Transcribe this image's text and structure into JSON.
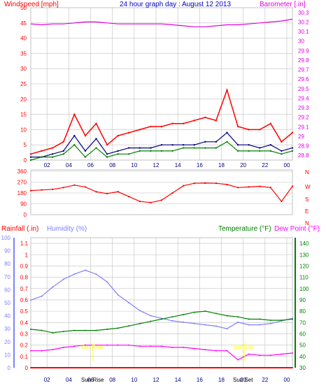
{
  "header": {
    "title": "24 hour graph day : August 12 2013",
    "windspeed_label": "Windspeed [mph]",
    "barometer_label": "Barometer [.in]"
  },
  "bottom": {
    "rainfall_label": "Rainfall (.in)",
    "humidity_label": "Humidity (%)",
    "temperature_label": "Temperature (°F)",
    "dewpoint_label": "Dew Point (°F)",
    "sunrise_label": "Sun Rise",
    "sunset_label": "Sun Set",
    "sunrise_marker": "Sun Rise",
    "sunset_marker": "Sun Set"
  },
  "colors": {
    "wind": "#ff0000",
    "gust_avg": "#000080",
    "wind_green": "#008000",
    "barometer": "#e000e0",
    "direction": "#ff0000",
    "humidity": "#8080ff",
    "temperature": "#008000",
    "dewpoint": "#ff00ff",
    "rain": "#ff0000",
    "sun": "#ffff00",
    "grid": "#c0c0c0"
  },
  "chart_data": [
    {
      "type": "line",
      "x_tick_labels": [
        "02",
        "04",
        "06",
        "08",
        "10",
        "12",
        "14",
        "16",
        "18",
        "20",
        "22",
        "00"
      ],
      "y_left_ticks": [
        "0",
        "5",
        "10",
        "15",
        "20",
        "25",
        "30",
        "35",
        "40",
        "45",
        "50"
      ],
      "y_right_ticks": [
        "28.8",
        "28.9",
        "29",
        "29.1",
        "29.2",
        "29.3",
        "29.4",
        "29.5",
        "29.6",
        "29.7",
        "29.8",
        "29.9",
        "30",
        "30.1",
        "30.2",
        "30.3"
      ],
      "ylim_left": [
        0,
        50
      ],
      "ylim_right": [
        28.75,
        30.35
      ],
      "x": [
        0,
        1,
        2,
        3,
        4,
        5,
        6,
        7,
        8,
        9,
        10,
        11,
        12,
        13,
        14,
        15,
        16,
        17,
        18,
        19,
        20,
        21,
        22,
        23,
        24
      ],
      "series": [
        {
          "name": "Windspeed [mph]",
          "axis": "left",
          "values": [
            2,
            3,
            4,
            6,
            15,
            8,
            12,
            5,
            8,
            9,
            10,
            11,
            11,
            12,
            12,
            13,
            14,
            13,
            23,
            11,
            10,
            10,
            12,
            6,
            9
          ]
        },
        {
          "name": "",
          "axis": "left",
          "values": [
            1,
            1,
            2,
            3,
            8,
            3,
            7,
            2,
            3,
            4,
            4,
            4,
            5,
            5,
            5,
            5,
            6,
            6,
            9,
            5,
            5,
            4,
            5,
            3,
            4
          ]
        },
        {
          "name": "",
          "axis": "left",
          "values": [
            0,
            1,
            1,
            2,
            5,
            1,
            4,
            1,
            2,
            2,
            3,
            3,
            3,
            3,
            4,
            4,
            4,
            4,
            6,
            3,
            3,
            3,
            3,
            2,
            3
          ]
        },
        {
          "name": "Barometer [.in]",
          "axis": "right",
          "values": [
            30.18,
            30.17,
            30.18,
            30.18,
            30.19,
            30.2,
            30.2,
            30.19,
            30.18,
            30.18,
            30.18,
            30.18,
            30.18,
            30.17,
            30.16,
            30.15,
            30.15,
            30.16,
            30.17,
            30.17,
            30.18,
            30.19,
            30.2,
            30.21,
            30.23
          ]
        }
      ]
    },
    {
      "type": "scatter",
      "x_tick_labels": [
        "02",
        "04",
        "06",
        "08",
        "10",
        "12",
        "14",
        "16",
        "18",
        "20",
        "22",
        "00"
      ],
      "y_left_ticks": [
        "0",
        "90",
        "180",
        "270",
        "360"
      ],
      "y_right_ticks": [
        "N",
        "W",
        "S",
        "E",
        "N"
      ],
      "ylim": [
        0,
        360
      ],
      "x": [
        0,
        1,
        2,
        3,
        4,
        5,
        6,
        7,
        8,
        9,
        10,
        11,
        12,
        13,
        14,
        15,
        16,
        17,
        18,
        19,
        20,
        21,
        22,
        23,
        24
      ],
      "series": [
        {
          "name": "",
          "values": [
            200,
            205,
            210,
            225,
            245,
            230,
            190,
            175,
            190,
            150,
            110,
            100,
            120,
            180,
            240,
            260,
            262,
            260,
            250,
            225,
            230,
            235,
            225,
            110,
            235
          ]
        }
      ]
    },
    {
      "type": "line",
      "x_tick_labels": [
        "02",
        "04",
        "06",
        "08",
        "10",
        "12",
        "14",
        "16",
        "18",
        "20",
        "22",
        "00"
      ],
      "tick_label_extras": [
        "Sun Rise",
        "Sun Set"
      ],
      "rain_ticks": [
        "0",
        "0.1",
        "0.2",
        "0.3",
        "0.4",
        "0.5",
        "0.6",
        "0.7",
        "0.8",
        "0.9",
        "1",
        "1.1"
      ],
      "humidity_ticks": [
        "0",
        "10",
        "20",
        "30",
        "40",
        "50",
        "60",
        "70",
        "80",
        "90",
        "100"
      ],
      "temp_ticks": [
        "30",
        "40",
        "50",
        "60",
        "70",
        "80",
        "90",
        "100",
        "110",
        "120",
        "130",
        "140"
      ],
      "ylim_rain": [
        0,
        1.15
      ],
      "ylim_humidity": [
        0,
        100
      ],
      "ylim_temp": [
        30,
        145
      ],
      "x": [
        0,
        1,
        2,
        3,
        4,
        5,
        6,
        7,
        8,
        9,
        10,
        11,
        12,
        13,
        14,
        15,
        16,
        17,
        18,
        19,
        20,
        21,
        22,
        23,
        24
      ],
      "series": [
        {
          "name": "Rainfall (.in)",
          "axis": "rain",
          "values": [
            0,
            0,
            0,
            0,
            0,
            0,
            0,
            0,
            0,
            0,
            0,
            0,
            0,
            0,
            0,
            0,
            0,
            0,
            0,
            0,
            0,
            0,
            0,
            0,
            0
          ]
        },
        {
          "name": "Humidity (%)",
          "axis": "humidity",
          "values": [
            52,
            55,
            62,
            68,
            72,
            75,
            72,
            66,
            56,
            50,
            44,
            40,
            38,
            36,
            35,
            34,
            33,
            32,
            30,
            35,
            33,
            33,
            34,
            36,
            38
          ]
        },
        {
          "name": "Temperature (°F)",
          "axis": "temp",
          "values": [
            64,
            63,
            61,
            62,
            63,
            63,
            63,
            64,
            65,
            67,
            69,
            71,
            73,
            75,
            77,
            79,
            80,
            78,
            76,
            75,
            73,
            73,
            72,
            72,
            73
          ]
        },
        {
          "name": "Dew Point (°F)",
          "axis": "temp",
          "values": [
            45,
            45,
            46,
            48,
            49,
            50,
            50,
            50,
            50,
            50,
            49,
            49,
            49,
            48,
            48,
            47,
            46,
            45,
            45,
            37,
            42,
            41,
            41,
            42,
            43
          ]
        }
      ]
    }
  ]
}
